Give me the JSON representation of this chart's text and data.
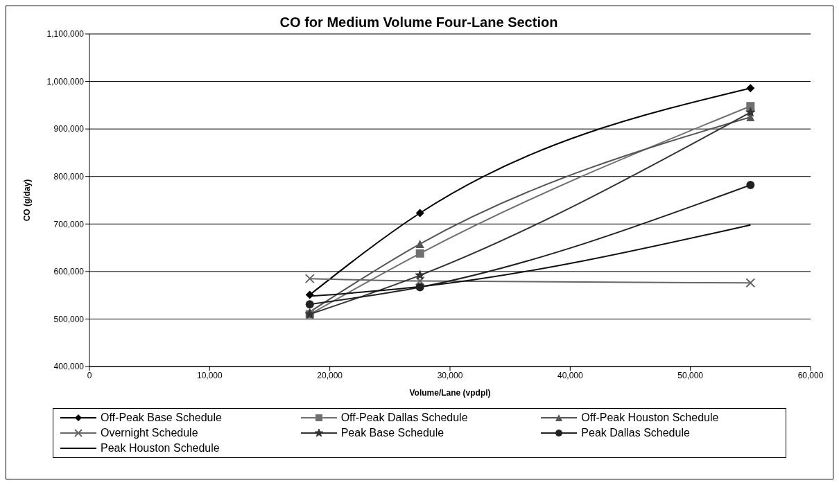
{
  "chart_data": {
    "type": "line",
    "title": "CO for Medium Volume Four-Lane Section",
    "xlabel": "Volume/Lane (vpdpl)",
    "ylabel": "CO (g/day)",
    "x": [
      18333,
      27500,
      55000
    ],
    "series": [
      {
        "name": "Off-Peak Base Schedule",
        "color": "#000000",
        "marker": "diamond",
        "values": [
          551000,
          723000,
          986000
        ]
      },
      {
        "name": "Off-Peak Dallas Schedule",
        "color": "#707070",
        "marker": "square",
        "values": [
          510000,
          638000,
          948000
        ]
      },
      {
        "name": "Off-Peak Houston Schedule",
        "color": "#555555",
        "marker": "triangle",
        "values": [
          515000,
          658000,
          925000
        ]
      },
      {
        "name": "Overnight Schedule",
        "color": "#666666",
        "marker": "cross",
        "values": [
          585000,
          580000,
          576000
        ]
      },
      {
        "name": "Peak Base Schedule",
        "color": "#333333",
        "marker": "star",
        "values": [
          510000,
          592000,
          935000
        ]
      },
      {
        "name": "Peak Dallas Schedule",
        "color": "#222222",
        "marker": "circle",
        "values": [
          531000,
          567000,
          782000
        ]
      },
      {
        "name": "Peak Houston Schedule",
        "color": "#111111",
        "marker": "none",
        "values": [
          548000,
          568000,
          698000
        ]
      }
    ],
    "xlim": [
      0,
      60000
    ],
    "xticks": [
      0,
      {
        "value": 10000,
        "label": "10,000"
      },
      {
        "value": 20000,
        "label": "20,000"
      },
      {
        "value": 30000,
        "label": "30,000"
      },
      {
        "value": 40000,
        "label": "40,000"
      },
      {
        "value": 50000,
        "label": "50,000"
      },
      {
        "value": 60000,
        "label": "60,000"
      }
    ],
    "ylim": [
      400000,
      1100000
    ],
    "yticks": [
      {
        "value": 400000,
        "label": "400,000"
      },
      {
        "value": 500000,
        "label": "500,000"
      },
      {
        "value": 600000,
        "label": "600,000"
      },
      {
        "value": 700000,
        "label": "700,000"
      },
      {
        "value": 800000,
        "label": "800,000"
      },
      {
        "value": 900000,
        "label": "900,000"
      },
      {
        "value": 1000000,
        "label": "1,000,000"
      },
      {
        "value": 1100000,
        "label": "1,100,000"
      }
    ],
    "grid": "y",
    "legend": "bottom",
    "line_style": "solid"
  }
}
